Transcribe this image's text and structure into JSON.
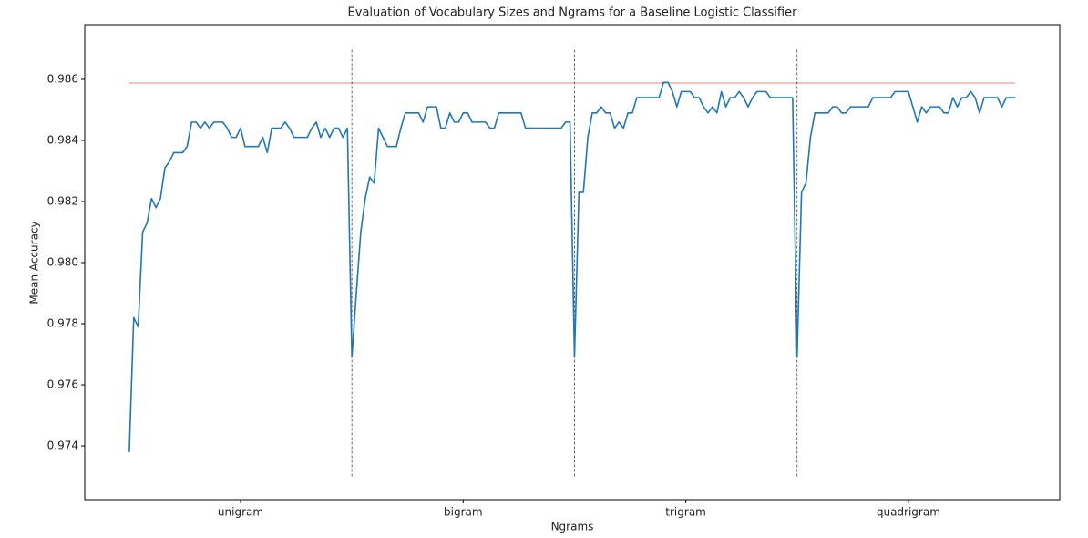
{
  "chart_data": {
    "type": "line",
    "title": "Evaluation of Vocabulary Sizes and Ngrams for a Baseline Logistic Classifier",
    "xlabel": "Ngrams",
    "ylabel": "Mean Accuracy",
    "xlim": [
      -10,
      209
    ],
    "ylim": [
      0.97224,
      0.98779
    ],
    "xticks": [
      {
        "value": 25,
        "label": "unigram"
      },
      {
        "value": 75,
        "label": "bigram"
      },
      {
        "value": 125,
        "label": "trigram"
      },
      {
        "value": 175,
        "label": "quadrigram"
      }
    ],
    "yticks": [
      0.974,
      0.976,
      0.978,
      {
        "value": 0.98,
        "label": "0.980"
      },
      0.982,
      0.984,
      0.986
    ],
    "series": [
      {
        "color": "#1f77b4",
        "values": [
          0.9738,
          0.9782,
          0.9779,
          0.981,
          0.9813,
          0.9821,
          0.9818,
          0.9821,
          0.9831,
          0.9833,
          0.9836,
          0.9836,
          0.9836,
          0.9838,
          0.9846,
          0.9846,
          0.9844,
          0.9846,
          0.9844,
          0.9846,
          0.9846,
          0.9846,
          0.9844,
          0.9841,
          0.9841,
          0.9844,
          0.9838,
          0.9838,
          0.9838,
          0.9838,
          0.9841,
          0.9836,
          0.9844,
          0.9844,
          0.9844,
          0.9846,
          0.9844,
          0.9841,
          0.9841,
          0.9841,
          0.9841,
          0.9844,
          0.9846,
          0.9841,
          0.9844,
          0.9841,
          0.9844,
          0.9844,
          0.9841,
          0.9844,
          0.9769,
          0.979,
          0.981,
          0.9821,
          0.9828,
          0.9826,
          0.9844,
          0.9841,
          0.9838,
          0.9838,
          0.9838,
          0.9844,
          0.9849,
          0.9849,
          0.9849,
          0.9849,
          0.9846,
          0.9851,
          0.9851,
          0.9851,
          0.9844,
          0.9844,
          0.9849,
          0.9846,
          0.9846,
          0.9849,
          0.9849,
          0.9846,
          0.9846,
          0.9846,
          0.9846,
          0.9844,
          0.9844,
          0.9849,
          0.9849,
          0.9849,
          0.9849,
          0.9849,
          0.9849,
          0.9844,
          0.9844,
          0.9844,
          0.9844,
          0.9844,
          0.9844,
          0.9844,
          0.9844,
          0.9844,
          0.9846,
          0.9846,
          0.9769,
          0.9823,
          0.9823,
          0.9841,
          0.9849,
          0.9849,
          0.9851,
          0.9849,
          0.9849,
          0.9844,
          0.9846,
          0.9844,
          0.9849,
          0.9849,
          0.9854,
          0.9854,
          0.9854,
          0.9854,
          0.9854,
          0.9854,
          0.9859,
          0.9859,
          0.9856,
          0.9851,
          0.9856,
          0.9856,
          0.9856,
          0.9854,
          0.9854,
          0.9851,
          0.9849,
          0.9851,
          0.9849,
          0.9856,
          0.9851,
          0.9854,
          0.9854,
          0.9856,
          0.9854,
          0.9851,
          0.9854,
          0.9856,
          0.9856,
          0.9856,
          0.9854,
          0.9854,
          0.9854,
          0.9854,
          0.9854,
          0.9854,
          0.9769,
          0.9823,
          0.9826,
          0.9841,
          0.9849,
          0.9849,
          0.9849,
          0.9849,
          0.9851,
          0.9851,
          0.9849,
          0.9849,
          0.9851,
          0.9851,
          0.9851,
          0.9851,
          0.9851,
          0.9854,
          0.9854,
          0.9854,
          0.9854,
          0.9854,
          0.9856,
          0.9856,
          0.9856,
          0.9856,
          0.9851,
          0.9846,
          0.9851,
          0.9849,
          0.9851,
          0.9851,
          0.9851,
          0.9849,
          0.9849,
          0.9854,
          0.9851,
          0.9854,
          0.9854,
          0.9856,
          0.9854,
          0.9849,
          0.9854,
          0.9854,
          0.9854,
          0.9854,
          0.9851,
          0.9854,
          0.9854,
          0.9854
        ]
      }
    ],
    "hlines": [
      {
        "y": 0.98588,
        "xmin": 0,
        "xmax": 199,
        "color": "#f08080"
      }
    ],
    "vlines": [
      {
        "x": 50,
        "ymin": 0.973,
        "ymax": 0.987,
        "color": "#444444"
      },
      {
        "x": 100,
        "ymin": 0.973,
        "ymax": 0.987,
        "color": "#444444"
      },
      {
        "x": 150,
        "ymin": 0.973,
        "ymax": 0.987,
        "color": "#444444"
      }
    ]
  }
}
